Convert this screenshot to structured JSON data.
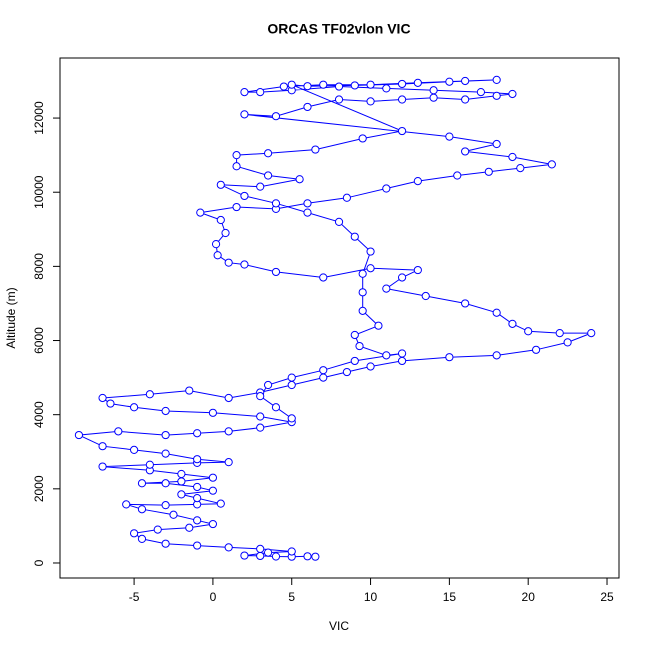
{
  "chart_data": {
    "type": "line",
    "title": "ORCAS TF02vlon VIC",
    "x_label": "VIC",
    "y_label": "Altitude (m)",
    "color": "#0000ff",
    "markers": true,
    "x": [
      6.5,
      6,
      5,
      4,
      3,
      2,
      3.5,
      5,
      3,
      1,
      -1,
      -3,
      -4.5,
      -5,
      -3.5,
      -1.5,
      0,
      -1,
      -2.5,
      -4.5,
      -5.5,
      -3,
      -1,
      0.5,
      -1,
      -2,
      0,
      -1,
      -3,
      -4.5,
      -2,
      0,
      -2,
      -4,
      -7,
      -4,
      -1,
      1,
      -1,
      -3,
      -5,
      -7,
      -8.5,
      -6,
      -3,
      -1,
      1,
      3,
      5,
      3,
      0,
      -3,
      -5,
      -6.5,
      -7,
      -4,
      -1.5,
      1,
      3,
      5,
      7,
      8.5,
      10,
      12,
      15,
      18,
      20.5,
      22.5,
      24,
      22,
      20,
      19,
      18,
      16,
      13.5,
      11,
      12,
      13,
      10,
      7,
      4,
      2,
      1,
      0.3,
      0.2,
      0.8,
      0.5,
      -0.8,
      1.5,
      4,
      6,
      8.5,
      11,
      13,
      15.5,
      17.5,
      19.5,
      21.5,
      19,
      16,
      18,
      15,
      2,
      4,
      6,
      8,
      10,
      12,
      14,
      16,
      18,
      19,
      17,
      14,
      11,
      8,
      5,
      3,
      2,
      4.5,
      7,
      10,
      13,
      16,
      18,
      15,
      12,
      9,
      6,
      5,
      12,
      9.5,
      6.5,
      3.5,
      1.5,
      1.5,
      3.5,
      5.5,
      3,
      0.5,
      2,
      4,
      6,
      8,
      9,
      10,
      9.5,
      9.5,
      9.5,
      10.5,
      9,
      9.3,
      11,
      12,
      9,
      7,
      5,
      3.5,
      3,
      4,
      5
    ],
    "values": [
      170,
      180,
      170,
      175,
      190,
      200,
      280,
      310,
      380,
      420,
      470,
      520,
      650,
      800,
      900,
      950,
      1050,
      1150,
      1300,
      1450,
      1580,
      1560,
      1580,
      1600,
      1750,
      1850,
      1950,
      2050,
      2150,
      2150,
      2200,
      2300,
      2400,
      2500,
      2600,
      2650,
      2700,
      2720,
      2800,
      2950,
      3050,
      3150,
      3450,
      3550,
      3450,
      3500,
      3550,
      3650,
      3800,
      3950,
      4050,
      4100,
      4200,
      4300,
      4450,
      4550,
      4650,
      4450,
      4600,
      4800,
      5000,
      5150,
      5300,
      5450,
      5550,
      5600,
      5750,
      5950,
      6200,
      6200,
      6250,
      6450,
      6750,
      7000,
      7200,
      7400,
      7700,
      7900,
      7950,
      7700,
      7850,
      8050,
      8100,
      8300,
      8600,
      8900,
      9250,
      9450,
      9600,
      9550,
      9700,
      9850,
      10100,
      10300,
      10450,
      10550,
      10650,
      10750,
      10950,
      11100,
      11300,
      11500,
      12100,
      12050,
      12300,
      12500,
      12450,
      12500,
      12550,
      12500,
      12600,
      12650,
      12700,
      12750,
      12800,
      12850,
      12750,
      12700,
      12700,
      12850,
      12900,
      12900,
      12950,
      13000,
      13030,
      12980,
      12920,
      12880,
      12860,
      12900,
      11650,
      11450,
      11150,
      11050,
      11000,
      10700,
      10450,
      10350,
      10150,
      10200,
      9900,
      9700,
      9450,
      9200,
      8800,
      8400,
      7800,
      7300,
      6800,
      6400,
      6150,
      5850,
      5600,
      5650,
      5450,
      5200,
      5000,
      4800,
      4500,
      4200,
      3900
    ],
    "xlim": [
      -9.7,
      25.76
    ],
    "ylim": [
      -405,
      13620
    ],
    "xticks": [
      -5,
      0,
      5,
      10,
      15,
      20,
      25
    ],
    "yticks": [
      0,
      2000,
      4000,
      6000,
      8000,
      10000,
      12000
    ]
  }
}
